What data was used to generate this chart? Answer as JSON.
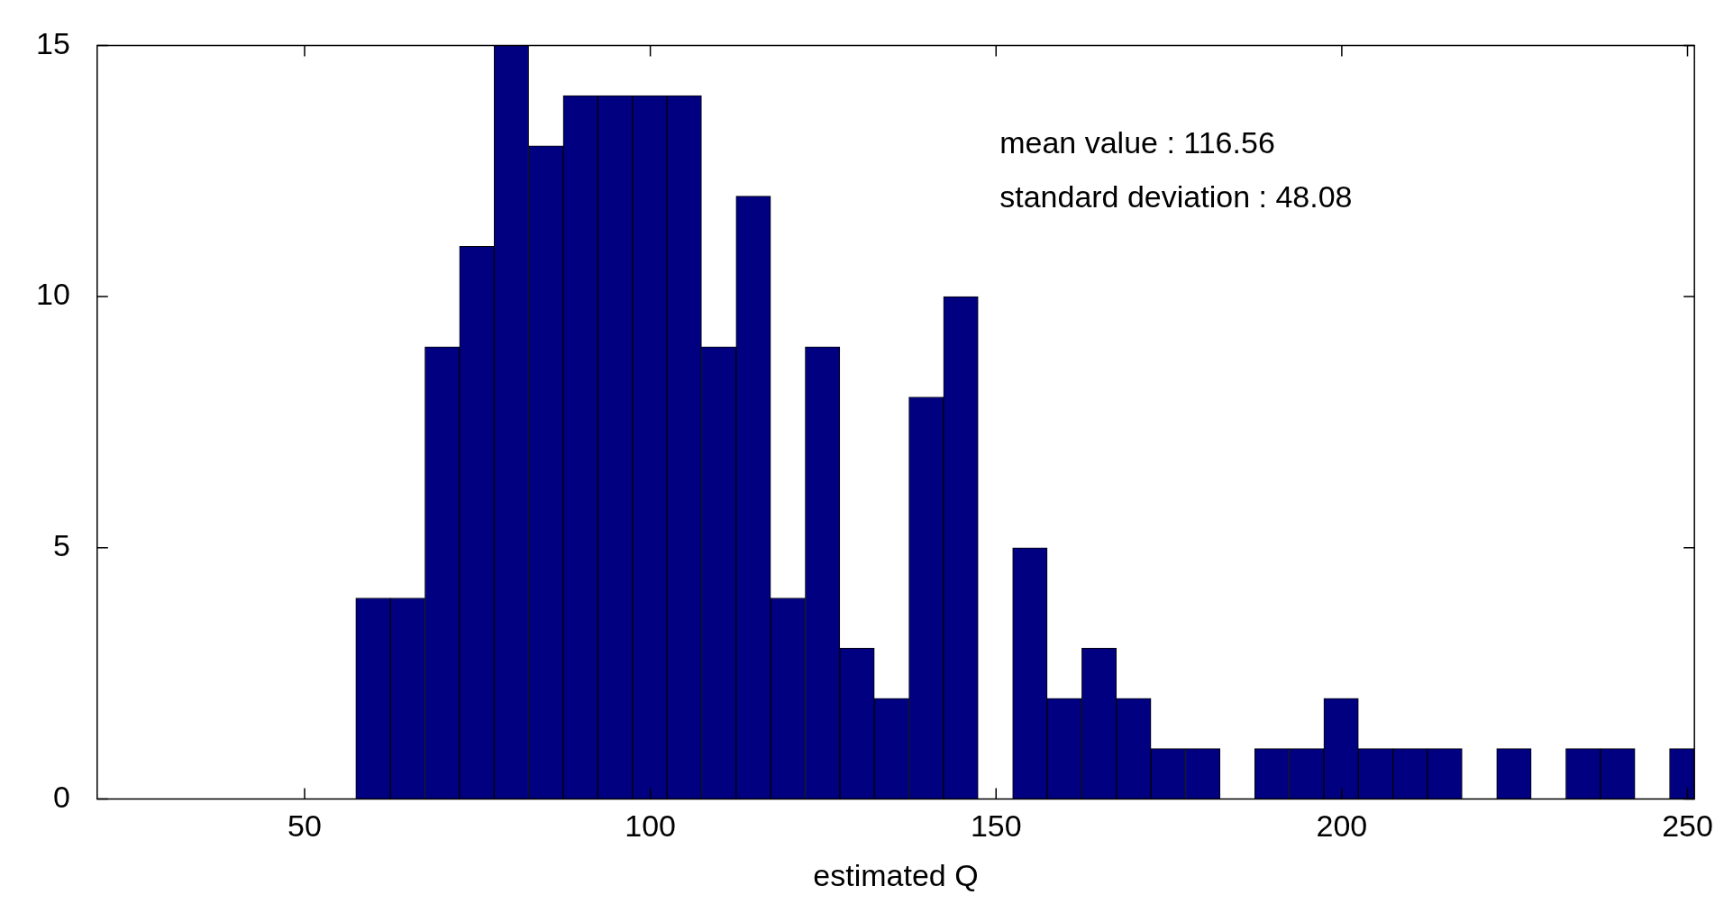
{
  "chart_data": {
    "type": "histogram",
    "xlabel": "estimated Q",
    "bins": [
      57.4,
      62.4,
      67.4,
      72.4,
      77.4,
      82.4,
      87.4,
      92.4,
      97.4,
      102.4,
      107.4,
      112.4,
      117.4,
      122.4,
      127.4,
      132.4,
      137.4,
      142.4,
      147.4,
      152.4,
      157.4,
      162.4,
      167.4,
      172.4,
      177.4,
      182.4,
      187.4,
      192.4,
      197.4,
      202.4,
      207.4,
      212.4,
      217.4,
      222.4,
      227.4,
      232.4,
      237.4,
      242.4,
      247.4,
      251
    ],
    "values": [
      4,
      4,
      9,
      11,
      15,
      13,
      14,
      14,
      14,
      14,
      9,
      12,
      4,
      9,
      3,
      2,
      8,
      10,
      0,
      5,
      2,
      3,
      2,
      1,
      1,
      0,
      1,
      1,
      2,
      1,
      1,
      1,
      0,
      1,
      0,
      1,
      1,
      0,
      1
    ],
    "color": "#000080",
    "xlim": [
      20,
      251
    ],
    "xticks": [
      50,
      100,
      150,
      200,
      250
    ],
    "ylim": [
      0,
      15
    ],
    "yticks": [
      0,
      5,
      10,
      15
    ],
    "grid": false,
    "legend": false,
    "annotations": [
      "mean value : 116.56",
      "standard deviation : 48.08"
    ]
  }
}
